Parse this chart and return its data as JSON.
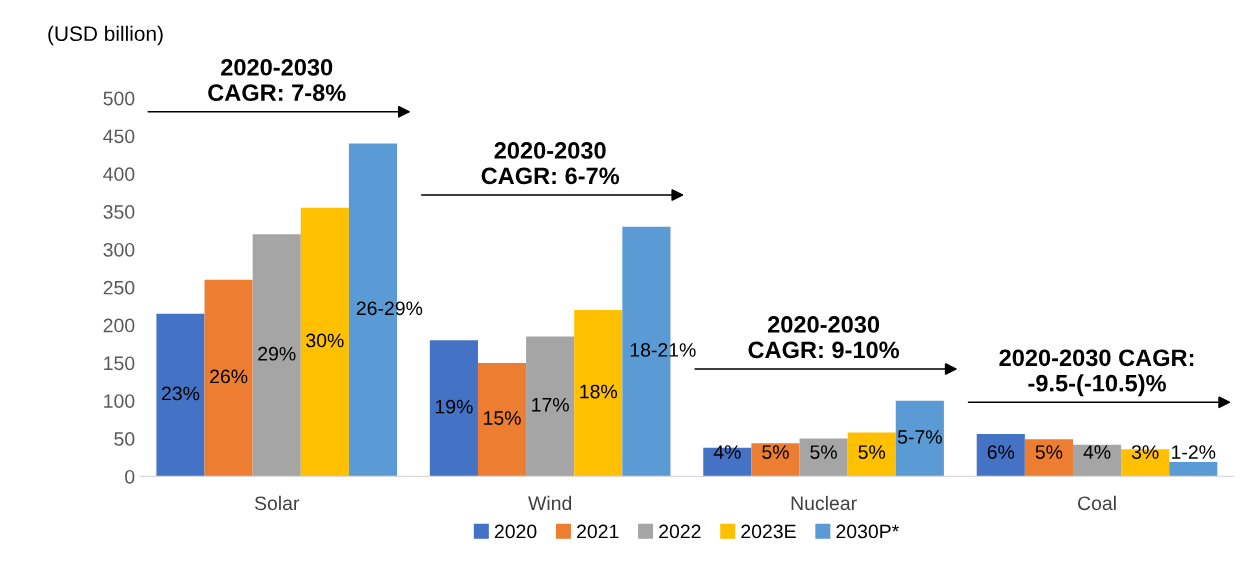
{
  "chart_data": {
    "type": "bar",
    "ylabel": "(USD billion)",
    "categories": [
      "Solar",
      "Wind",
      "Nuclear",
      "Coal"
    ],
    "series": [
      {
        "name": "2020",
        "color": "#4472c4",
        "values": [
          215,
          180,
          38,
          56
        ]
      },
      {
        "name": "2021",
        "color": "#ed7d31",
        "values": [
          260,
          150,
          44,
          49
        ]
      },
      {
        "name": "2022",
        "color": "#a5a5a5",
        "values": [
          320,
          185,
          50,
          42
        ]
      },
      {
        "name": "2023E",
        "color": "#ffc000",
        "values": [
          355,
          220,
          58,
          36
        ]
      },
      {
        "name": "2030P*",
        "color": "#5b9bd5",
        "values": [
          440,
          330,
          100,
          19
        ]
      }
    ],
    "ylim": [
      0,
      500
    ],
    "yticks": [
      0,
      50,
      100,
      150,
      200,
      250,
      300,
      350,
      400,
      450,
      500
    ],
    "grid": false,
    "legend": "bottom",
    "annotations": [
      "2020-2030\nCAGR: 7-8%",
      "2020-2030\nCAGR: 6-7%",
      "2020-2030\nCAGR: 9-10%",
      "2020-2030 CAGR:\n-9.5-(-10.5)%",
      "23%",
      "26%",
      "29%",
      "30%",
      "26-29%",
      "19%",
      "15%",
      "17%",
      "18%",
      "18-21%",
      "4%",
      "5%",
      "5%",
      "5%",
      "5-7%",
      "6%",
      "5%",
      "4%",
      "3%",
      "1-2%"
    ]
  }
}
